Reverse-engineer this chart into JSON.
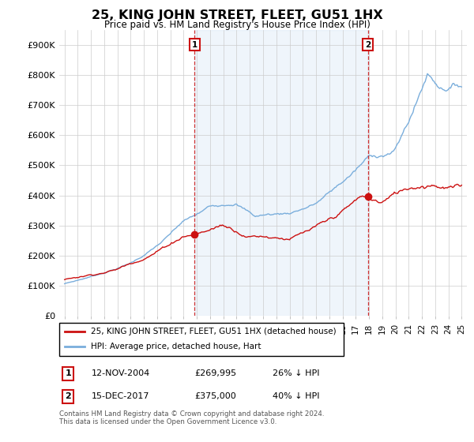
{
  "title": "25, KING JOHN STREET, FLEET, GU51 1HX",
  "subtitle": "Price paid vs. HM Land Registry's House Price Index (HPI)",
  "ylim": [
    0,
    950000
  ],
  "yticks": [
    0,
    100000,
    200000,
    300000,
    400000,
    500000,
    600000,
    700000,
    800000,
    900000
  ],
  "ytick_labels": [
    "£0",
    "£100K",
    "£200K",
    "£300K",
    "£400K",
    "£500K",
    "£600K",
    "£700K",
    "£800K",
    "£900K"
  ],
  "hpi_color": "#7aaedc",
  "price_color": "#cc1111",
  "sale1_date": "12-NOV-2004",
  "sale1_price": 269995,
  "sale1_label": "26% ↓ HPI",
  "sale2_date": "15-DEC-2017",
  "sale2_price": 375000,
  "sale2_label": "40% ↓ HPI",
  "legend_line1": "25, KING JOHN STREET, FLEET, GU51 1HX (detached house)",
  "legend_line2": "HPI: Average price, detached house, Hart",
  "footnote": "Contains HM Land Registry data © Crown copyright and database right 2024.\nThis data is licensed under the Open Government Licence v3.0.",
  "background_color": "#ffffff",
  "grid_color": "#cccccc",
  "shade_color": "#ddeeff"
}
